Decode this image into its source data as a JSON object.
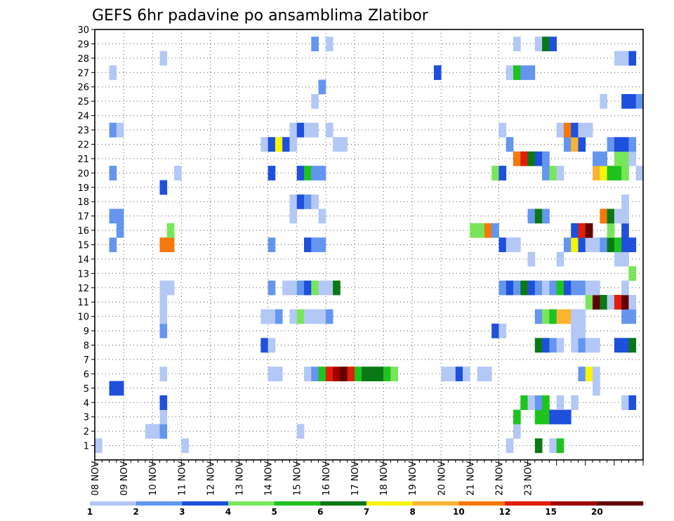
{
  "chart_data": {
    "type": "heatmap",
    "title": "GEFS 6hr padavine po ansamblima Zlatibor",
    "x_ticks": [
      "08 NOV",
      "09 NOV",
      "10 NOV",
      "11 NOV",
      "12 NOV",
      "13 NOV",
      "14 NOV",
      "15 NOV",
      "16 NOV",
      "17 NOV",
      "18 NOV",
      "19 NOV",
      "20 NOV",
      "21 NOV",
      "22 NOV",
      "23 NOV"
    ],
    "y_ticks": [
      "1",
      "2",
      "3",
      "4",
      "5",
      "6",
      "7",
      "8",
      "9",
      "10",
      "11",
      "12",
      "13",
      "14",
      "15",
      "16",
      "17",
      "18",
      "19",
      "20",
      "21",
      "22",
      "23",
      "24",
      "25",
      "26",
      "27",
      "28",
      "29",
      "30"
    ],
    "x_range": [
      "08 NOV 00Z",
      "23 NOV 00Z"
    ],
    "y_range": [
      0,
      30
    ],
    "time_step_hours": 6,
    "grid": "dotted",
    "colorbar": {
      "placement": "bottom",
      "levels": [
        "1",
        "2",
        "3",
        "4",
        "5",
        "6",
        "7",
        "8",
        "10",
        "12",
        "15",
        "20"
      ],
      "colors": [
        "#b4c8f5",
        "#6496f0",
        "#1e50dc",
        "#78e65a",
        "#1ec31e",
        "#0a7814",
        "#f5f50a",
        "#fab432",
        "#f5780a",
        "#e11e0a",
        "#a00000",
        "#640000"
      ]
    },
    "cells": [
      [
        1,
        1,
        1
      ],
      [
        13,
        1,
        1
      ],
      [
        58,
        1,
        1
      ],
      [
        59,
        2,
        1
      ],
      [
        59,
        3,
        5
      ],
      [
        62,
        1,
        6
      ],
      [
        64,
        1,
        1
      ],
      [
        65,
        1,
        5
      ],
      [
        8,
        2,
        1
      ],
      [
        9,
        2,
        1
      ],
      [
        10,
        2,
        2
      ],
      [
        29,
        2,
        1
      ],
      [
        10,
        3,
        1
      ],
      [
        62,
        3,
        5
      ],
      [
        63,
        3,
        5
      ],
      [
        64,
        3,
        3
      ],
      [
        65,
        3,
        3
      ],
      [
        66,
        3,
        3
      ],
      [
        10,
        4,
        3
      ],
      [
        60,
        4,
        5
      ],
      [
        61,
        4,
        1
      ],
      [
        62,
        4,
        2
      ],
      [
        63,
        4,
        5
      ],
      [
        65,
        4,
        1
      ],
      [
        67,
        4,
        1
      ],
      [
        74,
        4,
        1
      ],
      [
        75,
        4,
        3
      ],
      [
        3,
        5,
        3
      ],
      [
        4,
        5,
        3
      ],
      [
        70,
        5,
        1
      ],
      [
        10,
        6,
        1
      ],
      [
        25,
        6,
        1
      ],
      [
        26,
        6,
        1
      ],
      [
        30,
        6,
        1
      ],
      [
        31,
        6,
        2
      ],
      [
        32,
        6,
        5
      ],
      [
        33,
        6,
        10
      ],
      [
        34,
        6,
        11
      ],
      [
        35,
        6,
        12
      ],
      [
        36,
        6,
        10
      ],
      [
        37,
        6,
        5
      ],
      [
        38,
        6,
        6
      ],
      [
        39,
        6,
        6
      ],
      [
        40,
        6,
        6
      ],
      [
        41,
        6,
        5
      ],
      [
        42,
        6,
        4
      ],
      [
        49,
        6,
        1
      ],
      [
        50,
        6,
        1
      ],
      [
        51,
        6,
        3
      ],
      [
        52,
        6,
        1
      ],
      [
        54,
        6,
        1
      ],
      [
        55,
        6,
        1
      ],
      [
        68,
        6,
        2
      ],
      [
        69,
        6,
        7
      ],
      [
        70,
        6,
        1
      ],
      [
        24,
        8,
        3
      ],
      [
        25,
        8,
        1
      ],
      [
        62,
        8,
        6
      ],
      [
        63,
        8,
        3
      ],
      [
        64,
        8,
        2
      ],
      [
        65,
        8,
        1
      ],
      [
        67,
        8,
        1
      ],
      [
        68,
        8,
        2
      ],
      [
        69,
        8,
        1
      ],
      [
        70,
        8,
        1
      ],
      [
        73,
        8,
        3
      ],
      [
        74,
        8,
        3
      ],
      [
        75,
        8,
        6
      ],
      [
        10,
        9,
        2
      ],
      [
        56,
        9,
        3
      ],
      [
        57,
        9,
        1
      ],
      [
        67,
        9,
        1
      ],
      [
        68,
        9,
        1
      ],
      [
        10,
        10,
        1
      ],
      [
        24,
        10,
        1
      ],
      [
        25,
        10,
        1
      ],
      [
        26,
        10,
        2
      ],
      [
        28,
        10,
        1
      ],
      [
        29,
        10,
        4
      ],
      [
        30,
        10,
        1
      ],
      [
        31,
        10,
        1
      ],
      [
        32,
        10,
        1
      ],
      [
        33,
        10,
        2
      ],
      [
        62,
        10,
        2
      ],
      [
        63,
        10,
        4
      ],
      [
        64,
        10,
        5
      ],
      [
        65,
        10,
        8
      ],
      [
        66,
        10,
        8
      ],
      [
        67,
        10,
        1
      ],
      [
        68,
        10,
        1
      ],
      [
        74,
        10,
        2
      ],
      [
        75,
        10,
        2
      ],
      [
        10,
        11,
        1
      ],
      [
        69,
        11,
        4
      ],
      [
        70,
        11,
        12
      ],
      [
        71,
        11,
        6
      ],
      [
        72,
        11,
        1
      ],
      [
        73,
        11,
        10
      ],
      [
        74,
        11,
        12
      ],
      [
        75,
        11,
        1
      ],
      [
        10,
        12,
        1
      ],
      [
        11,
        12,
        1
      ],
      [
        25,
        12,
        2
      ],
      [
        27,
        12,
        1
      ],
      [
        28,
        12,
        1
      ],
      [
        29,
        12,
        2
      ],
      [
        30,
        12,
        3
      ],
      [
        31,
        12,
        4
      ],
      [
        32,
        12,
        1
      ],
      [
        33,
        12,
        1
      ],
      [
        34,
        12,
        6
      ],
      [
        57,
        12,
        2
      ],
      [
        58,
        12,
        3
      ],
      [
        59,
        12,
        2
      ],
      [
        60,
        12,
        6
      ],
      [
        61,
        12,
        3
      ],
      [
        62,
        12,
        2
      ],
      [
        63,
        12,
        1
      ],
      [
        64,
        12,
        2
      ],
      [
        65,
        12,
        5
      ],
      [
        66,
        12,
        3
      ],
      [
        67,
        12,
        2
      ],
      [
        68,
        12,
        2
      ],
      [
        69,
        12,
        1
      ],
      [
        70,
        12,
        1
      ],
      [
        74,
        12,
        1
      ],
      [
        75,
        13,
        4
      ],
      [
        61,
        14,
        1
      ],
      [
        65,
        14,
        1
      ],
      [
        73,
        14,
        1
      ],
      [
        74,
        14,
        1
      ],
      [
        3,
        15,
        2
      ],
      [
        10,
        15,
        9
      ],
      [
        11,
        15,
        9
      ],
      [
        25,
        15,
        2
      ],
      [
        30,
        15,
        3
      ],
      [
        31,
        15,
        2
      ],
      [
        32,
        15,
        2
      ],
      [
        57,
        15,
        3
      ],
      [
        58,
        15,
        1
      ],
      [
        59,
        15,
        1
      ],
      [
        66,
        15,
        2
      ],
      [
        67,
        15,
        7
      ],
      [
        68,
        15,
        3
      ],
      [
        69,
        15,
        1
      ],
      [
        70,
        15,
        1
      ],
      [
        71,
        15,
        2
      ],
      [
        72,
        15,
        6
      ],
      [
        73,
        15,
        5
      ],
      [
        74,
        15,
        3
      ],
      [
        75,
        15,
        3
      ],
      [
        4,
        16,
        2
      ],
      [
        11,
        16,
        4
      ],
      [
        53,
        16,
        4
      ],
      [
        54,
        16,
        4
      ],
      [
        55,
        16,
        9
      ],
      [
        56,
        16,
        2
      ],
      [
        67,
        16,
        3
      ],
      [
        68,
        16,
        10
      ],
      [
        69,
        16,
        12
      ],
      [
        72,
        16,
        4
      ],
      [
        74,
        16,
        3
      ],
      [
        3,
        17,
        2
      ],
      [
        4,
        17,
        2
      ],
      [
        28,
        17,
        1
      ],
      [
        32,
        17,
        1
      ],
      [
        61,
        17,
        2
      ],
      [
        62,
        17,
        6
      ],
      [
        63,
        17,
        2
      ],
      [
        71,
        17,
        9
      ],
      [
        72,
        17,
        6
      ],
      [
        73,
        17,
        1
      ],
      [
        74,
        17,
        1
      ],
      [
        28,
        18,
        1
      ],
      [
        29,
        18,
        3
      ],
      [
        30,
        18,
        2
      ],
      [
        31,
        18,
        1
      ],
      [
        74,
        18,
        1
      ],
      [
        10,
        19,
        3
      ],
      [
        3,
        20,
        2
      ],
      [
        12,
        20,
        1
      ],
      [
        25,
        20,
        3
      ],
      [
        29,
        20,
        3
      ],
      [
        30,
        20,
        5
      ],
      [
        31,
        20,
        2
      ],
      [
        32,
        20,
        2
      ],
      [
        56,
        20,
        4
      ],
      [
        57,
        20,
        3
      ],
      [
        63,
        20,
        2
      ],
      [
        64,
        20,
        4
      ],
      [
        65,
        20,
        1
      ],
      [
        70,
        20,
        8
      ],
      [
        71,
        20,
        7
      ],
      [
        72,
        20,
        5
      ],
      [
        73,
        20,
        5
      ],
      [
        74,
        20,
        4
      ],
      [
        76,
        20,
        1
      ],
      [
        59,
        21,
        9
      ],
      [
        60,
        21,
        10
      ],
      [
        61,
        21,
        6
      ],
      [
        62,
        21,
        3
      ],
      [
        63,
        21,
        2
      ],
      [
        70,
        21,
        2
      ],
      [
        71,
        21,
        2
      ],
      [
        73,
        21,
        4
      ],
      [
        74,
        21,
        4
      ],
      [
        75,
        21,
        1
      ],
      [
        24,
        22,
        1
      ],
      [
        25,
        22,
        3
      ],
      [
        26,
        22,
        7
      ],
      [
        27,
        22,
        3
      ],
      [
        28,
        22,
        1
      ],
      [
        34,
        22,
        1
      ],
      [
        35,
        22,
        1
      ],
      [
        58,
        22,
        2
      ],
      [
        66,
        22,
        2
      ],
      [
        67,
        22,
        8
      ],
      [
        68,
        22,
        3
      ],
      [
        72,
        22,
        2
      ],
      [
        73,
        22,
        3
      ],
      [
        74,
        22,
        3
      ],
      [
        75,
        22,
        2
      ],
      [
        3,
        23,
        2
      ],
      [
        4,
        23,
        1
      ],
      [
        28,
        23,
        1
      ],
      [
        29,
        23,
        3
      ],
      [
        30,
        23,
        1
      ],
      [
        31,
        23,
        1
      ],
      [
        33,
        23,
        1
      ],
      [
        57,
        23,
        1
      ],
      [
        65,
        23,
        1
      ],
      [
        66,
        23,
        9
      ],
      [
        67,
        23,
        3
      ],
      [
        68,
        23,
        1
      ],
      [
        69,
        23,
        1
      ],
      [
        31,
        25,
        1
      ],
      [
        71,
        25,
        1
      ],
      [
        74,
        25,
        3
      ],
      [
        75,
        25,
        3
      ],
      [
        76,
        25,
        2
      ],
      [
        32,
        26,
        2
      ],
      [
        3,
        27,
        1
      ],
      [
        48,
        27,
        3
      ],
      [
        58,
        27,
        1
      ],
      [
        59,
        27,
        5
      ],
      [
        60,
        27,
        2
      ],
      [
        61,
        27,
        2
      ],
      [
        10,
        28,
        1
      ],
      [
        73,
        28,
        1
      ],
      [
        74,
        28,
        1
      ],
      [
        75,
        28,
        3
      ],
      [
        31,
        29,
        2
      ],
      [
        33,
        29,
        1
      ],
      [
        59,
        29,
        1
      ],
      [
        62,
        29,
        1
      ],
      [
        63,
        29,
        6
      ],
      [
        64,
        29,
        3
      ]
    ]
  }
}
